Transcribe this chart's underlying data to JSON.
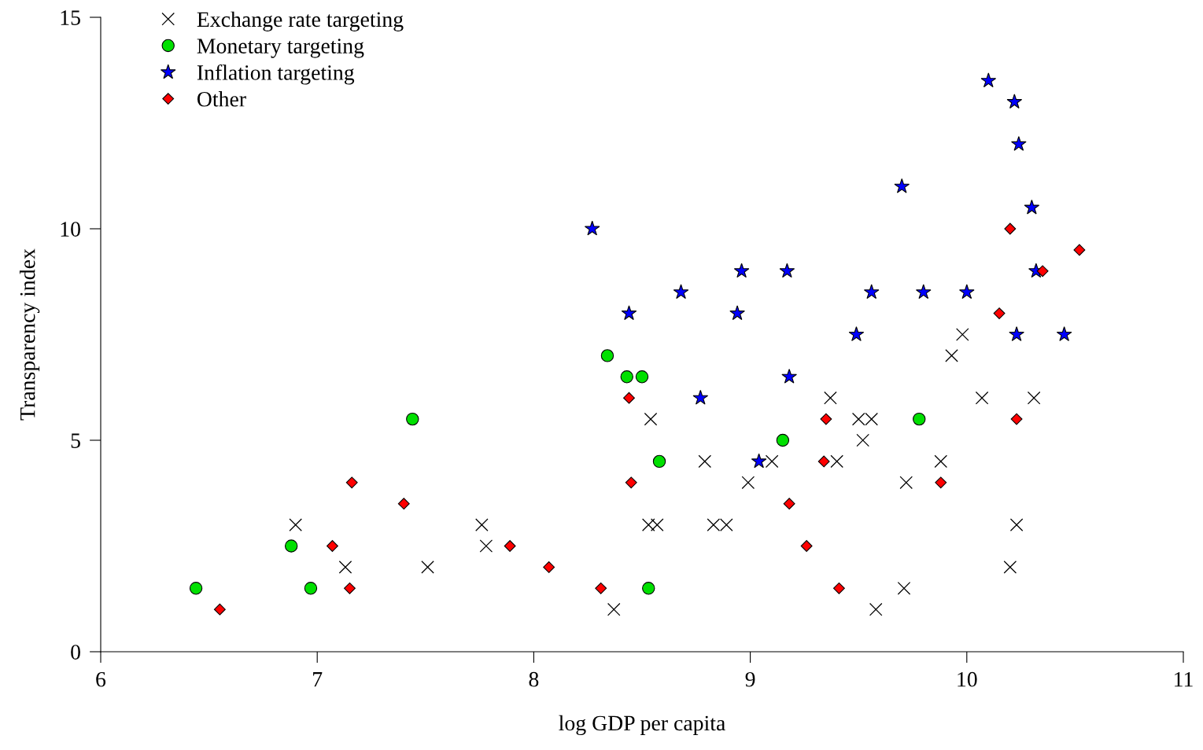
{
  "chart_data": {
    "type": "scatter",
    "xlabel": "log GDP per capita",
    "ylabel": "Transparency index",
    "xlim": [
      6,
      11
    ],
    "xticks": [
      6,
      7,
      8,
      9,
      10,
      11
    ],
    "ylim": [
      0,
      15
    ],
    "yticks": [
      0,
      5,
      10,
      15
    ],
    "grid": false,
    "legend": "top left",
    "series": [
      {
        "name": "Exchange rate targeting",
        "color": "#000000",
        "marker": "cross",
        "x": [
          6.9,
          7.13,
          7.51,
          7.76,
          7.78,
          8.37,
          8.54,
          8.53,
          8.57,
          8.79,
          8.83,
          8.89,
          8.99,
          9.1,
          9.37,
          9.4,
          9.5,
          9.52,
          9.56,
          9.58,
          9.71,
          9.72,
          9.88,
          9.93,
          9.98,
          10.07,
          10.2,
          10.23,
          10.31
        ],
        "values": [
          3,
          2,
          2,
          3,
          2.5,
          1,
          5.5,
          3,
          3,
          4.5,
          3,
          3,
          4,
          4.5,
          6,
          4.5,
          5.5,
          5,
          5.5,
          1,
          1.5,
          4,
          4.5,
          7,
          7.5,
          6,
          2,
          3,
          6
        ]
      },
      {
        "name": "Monetary targeting",
        "color": "#00e000",
        "marker": "circle",
        "x": [
          6.44,
          6.88,
          6.97,
          7.44,
          8.34,
          8.43,
          8.5,
          8.58,
          8.53,
          9.15,
          9.78
        ],
        "values": [
          1.5,
          2.5,
          1.5,
          5.5,
          7,
          6.5,
          6.5,
          4.5,
          1.5,
          5,
          5.5
        ]
      },
      {
        "name": "Inflation targeting",
        "color": "#0000ff",
        "marker": "star",
        "x": [
          8.27,
          8.44,
          8.68,
          8.77,
          8.94,
          8.96,
          9.04,
          9.17,
          9.18,
          9.49,
          9.56,
          9.7,
          9.8,
          10.0,
          10.1,
          10.22,
          10.24,
          10.3,
          10.32,
          10.23,
          10.45
        ],
        "values": [
          10,
          8,
          8.5,
          6,
          8,
          9,
          4.5,
          9,
          6.5,
          7.5,
          8.5,
          11,
          8.5,
          8.5,
          13.5,
          13,
          12,
          10.5,
          9,
          7.5,
          7.5
        ]
      },
      {
        "name": "Other",
        "color": "#ff0000",
        "marker": "diamond",
        "x": [
          6.55,
          7.07,
          7.16,
          7.15,
          7.4,
          7.89,
          8.07,
          8.31,
          8.44,
          8.45,
          9.18,
          9.26,
          9.34,
          9.35,
          9.41,
          9.88,
          10.15,
          10.2,
          10.23,
          10.35,
          10.52
        ],
        "values": [
          1,
          2.5,
          4,
          1.5,
          3.5,
          2.5,
          2,
          1.5,
          6,
          4,
          3.5,
          2.5,
          4.5,
          5.5,
          1.5,
          4,
          8,
          10,
          5.5,
          9,
          9.5
        ]
      }
    ]
  }
}
